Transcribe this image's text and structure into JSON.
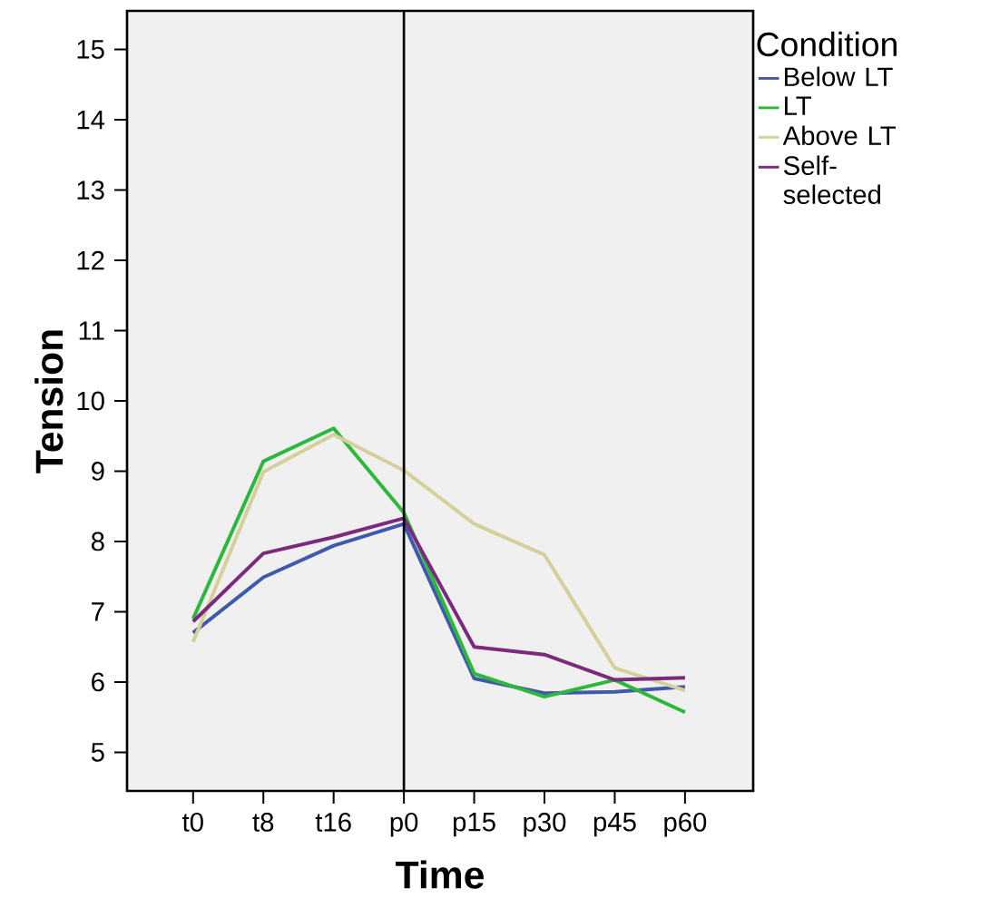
{
  "chart_data": {
    "type": "line",
    "xlabel": "Time",
    "ylabel": "Tension",
    "legend_title": "Condition",
    "categories": [
      "t0",
      "t8",
      "t16",
      "p0",
      "p15",
      "p30",
      "p45",
      "p60"
    ],
    "series": [
      {
        "name": "Below LT",
        "color": "#3f59ad",
        "values": [
          6.7,
          7.49,
          7.94,
          8.25,
          6.05,
          5.84,
          5.86,
          5.93
        ]
      },
      {
        "name": "LT",
        "color": "#2db83d",
        "values": [
          6.9,
          9.14,
          9.61,
          8.41,
          6.12,
          5.79,
          6.03,
          5.57
        ]
      },
      {
        "name": "Above LT",
        "color": "#d5d09a",
        "values": [
          6.57,
          8.99,
          9.52,
          9.01,
          8.25,
          7.81,
          6.2,
          5.88
        ]
      },
      {
        "name": "Self-selected",
        "color": "#7b2a7e",
        "values": [
          6.86,
          7.83,
          8.06,
          8.33,
          6.5,
          6.39,
          6.03,
          6.06
        ]
      }
    ],
    "ylim": [
      4.45,
      15.55
    ],
    "yticks": [
      5,
      6,
      7,
      8,
      9,
      10,
      11,
      12,
      13,
      14,
      15
    ],
    "ref_lines": [
      {
        "axis": "x",
        "value": "p0",
        "color": "#000000",
        "line_style": "solid"
      }
    ],
    "grid": false,
    "legend": "top right",
    "marker": "none",
    "line_style": "solid"
  }
}
